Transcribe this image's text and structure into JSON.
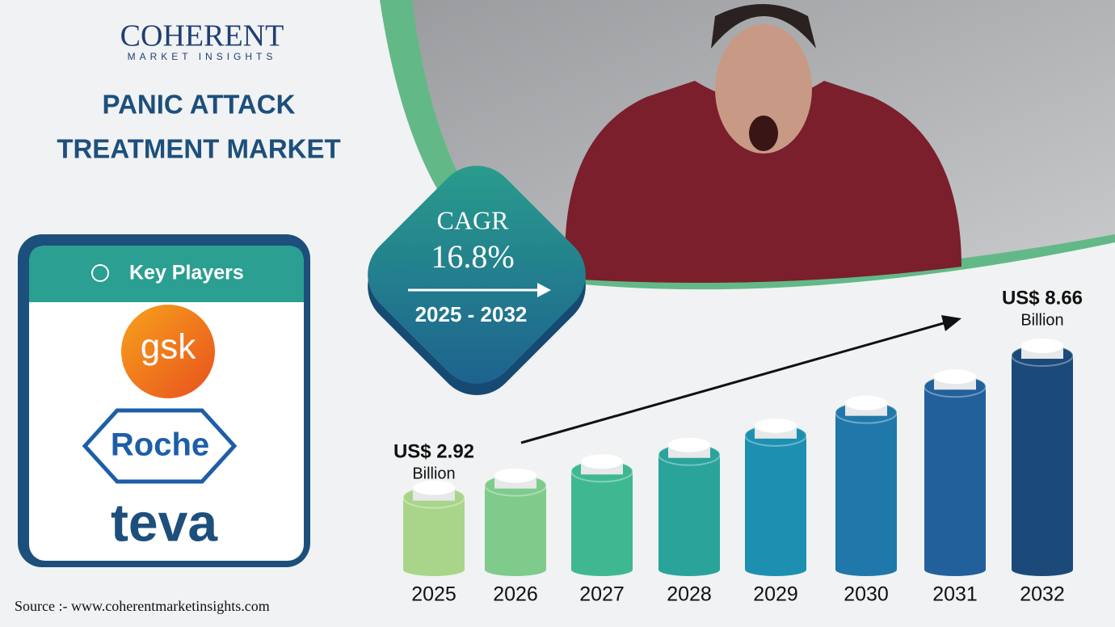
{
  "header": {
    "logo_main": "COHERENT",
    "logo_sub": "MARKET INSIGHTS",
    "title_line1": "PANIC ATTACK",
    "title_line2": "TREATMENT MARKET"
  },
  "key_players": {
    "heading": "Key Players",
    "companies": [
      "gsk",
      "Roche",
      "teva"
    ]
  },
  "cagr": {
    "label": "CAGR",
    "value": "16.8%",
    "period": "2025 - 2032"
  },
  "chart_data": {
    "type": "bar",
    "categories": [
      "2025",
      "2026",
      "2027",
      "2028",
      "2029",
      "2030",
      "2031",
      "2032"
    ],
    "values": [
      2.92,
      3.41,
      3.98,
      4.65,
      5.43,
      6.35,
      7.41,
      8.66
    ],
    "value_labels": [
      "US$ 2.92",
      null,
      null,
      null,
      null,
      null,
      null,
      "US$ 8.66"
    ],
    "value_unit": "Billion",
    "colors": [
      "#a9d58b",
      "#7ecb8c",
      "#3fb891",
      "#2aa39b",
      "#1d90b2",
      "#1f78a9",
      "#22609c",
      "#1b4a7a"
    ]
  },
  "source": "Source :- www.coherentmarketinsights.com"
}
